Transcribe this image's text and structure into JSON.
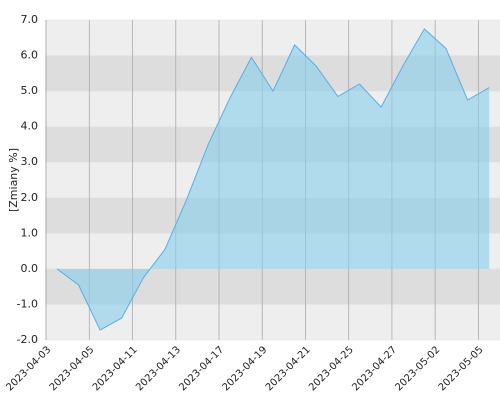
{
  "chart_data": {
    "type": "area",
    "y_label": "[Zmiany %]",
    "x": [
      0,
      1,
      2,
      3,
      4,
      5,
      6,
      7,
      8,
      9,
      10,
      11,
      12,
      13,
      14,
      15,
      16,
      17,
      18,
      19,
      20
    ],
    "values": [
      0.0,
      -0.45,
      -1.72,
      -1.38,
      -0.25,
      0.55,
      1.95,
      3.5,
      4.8,
      5.95,
      5.0,
      6.3,
      5.7,
      4.85,
      5.2,
      4.55,
      5.7,
      6.75,
      6.2,
      4.75,
      5.1
    ],
    "color": "#5aade6",
    "fill": "rgba(135,206,235,0.6)",
    "xlim": [
      -0.55,
      20.5
    ],
    "xticks": [
      {
        "value": -0.5,
        "label": "2023-04-03"
      },
      {
        "value": 1.5,
        "label": "2023-04-05"
      },
      {
        "value": 3.5,
        "label": "2023-04-11"
      },
      {
        "value": 5.5,
        "label": "2023-04-13"
      },
      {
        "value": 7.5,
        "label": "2023-04-17"
      },
      {
        "value": 9.5,
        "label": "2023-04-19"
      },
      {
        "value": 11.5,
        "label": "2023-04-21"
      },
      {
        "value": 13.5,
        "label": "2023-04-25"
      },
      {
        "value": 15.5,
        "label": "2023-04-27"
      },
      {
        "value": 17.5,
        "label": "2023-05-02"
      },
      {
        "value": 19.5,
        "label": "2023-05-05"
      }
    ],
    "ylim": [
      -2,
      7
    ],
    "yticks": [
      {
        "value": -2,
        "label": "-2.0"
      },
      {
        "value": -1,
        "label": "-1.0"
      },
      {
        "value": 0,
        "label": "0.0"
      },
      {
        "value": 1,
        "label": "1.0"
      },
      {
        "value": 2,
        "label": "2.0"
      },
      {
        "value": 3,
        "label": "3.0"
      },
      {
        "value": 4,
        "label": "4.0"
      },
      {
        "value": 5,
        "label": "5.0"
      },
      {
        "value": 6,
        "label": "6.0"
      },
      {
        "value": 7,
        "label": "7.0"
      }
    ],
    "grid": true
  }
}
